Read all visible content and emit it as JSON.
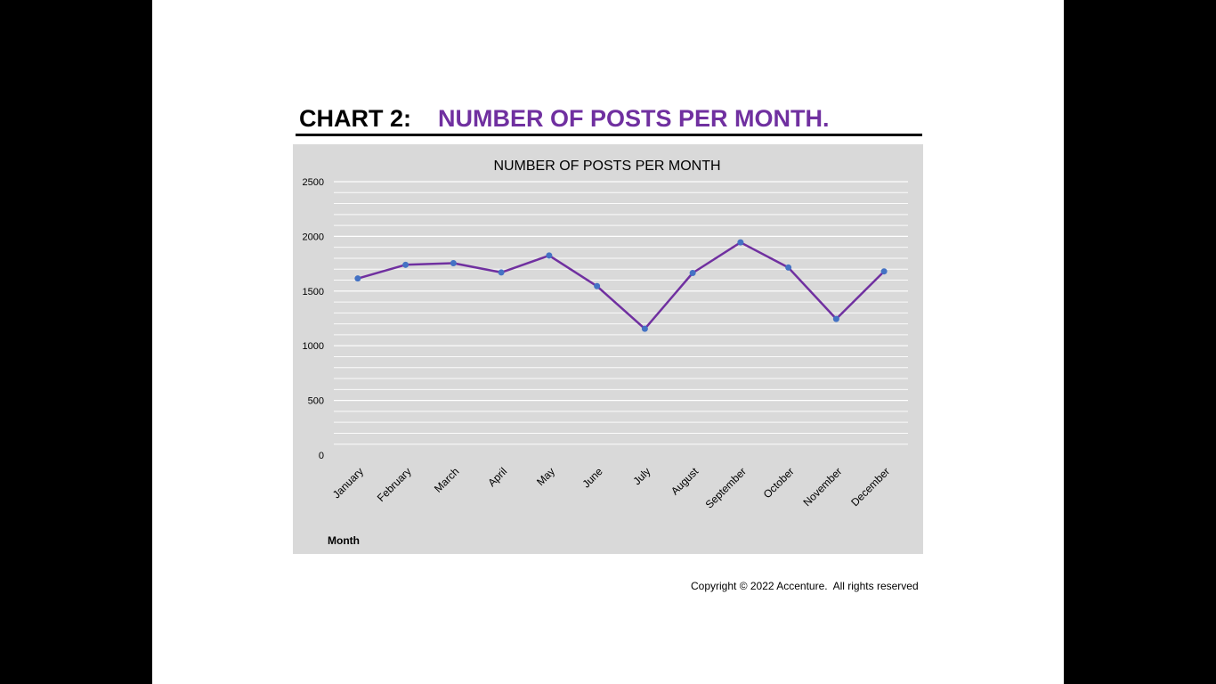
{
  "slide": {
    "title_prefix": "CHART 2:",
    "title_text": "NUMBER OF POSTS PER MONTH.",
    "copyright": "Copyright © 2022 Accenture.  All rights reserved"
  },
  "colors": {
    "title_accent": "#7030a0",
    "line": "#7030a0",
    "markers": "#4472c4",
    "plot_background": "#d9d9d9",
    "gridlines": "#ffffff"
  },
  "chart_data": {
    "type": "line",
    "title": "NUMBER OF POSTS PER MONTH",
    "xlabel": "Month",
    "ylabel": "",
    "ylim": [
      0,
      2500
    ],
    "yticks": [
      0,
      500,
      1000,
      1500,
      2000,
      2500
    ],
    "minor_grid_step": 100,
    "grid": true,
    "legend": "none",
    "categories": [
      "January",
      "February",
      "March",
      "April",
      "May",
      "June",
      "July",
      "August",
      "September",
      "October",
      "November",
      "December"
    ],
    "series": [
      {
        "values": [
          1615,
          1740,
          1755,
          1670,
          1825,
          1545,
          1155,
          1665,
          1945,
          1715,
          1245,
          1680
        ]
      }
    ]
  }
}
